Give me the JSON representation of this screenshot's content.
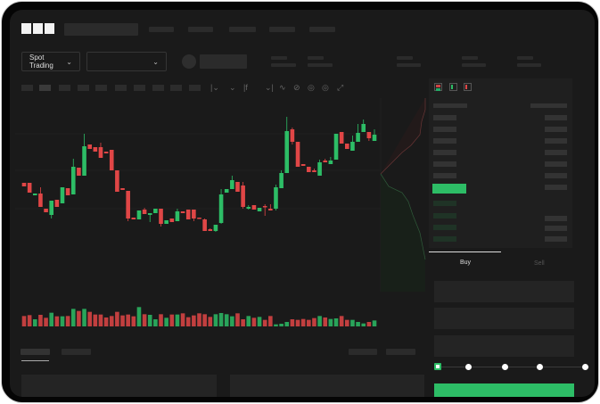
{
  "header": {
    "logo_text": "OKX",
    "nav_items": [
      "",
      "",
      "",
      "",
      ""
    ]
  },
  "market_bar": {
    "mode_select": "Spot Trading",
    "pair_select": ""
  },
  "toolbar": {
    "icons": [
      "candle-type-icon",
      "indicator-icon",
      "formula-icon",
      "line-tool-icon",
      "pencil-icon",
      "camera-icon",
      "settings-icon",
      "fullscreen-icon"
    ]
  },
  "orderbook": {
    "view_icons": [
      "both-sides-icon",
      "bids-only-icon",
      "asks-only-icon"
    ]
  },
  "trade_panel": {
    "tabs": [
      "Buy",
      "Sell"
    ],
    "active_tab": "Buy",
    "leverage_steps": 5,
    "selected_step": 0
  },
  "colors": {
    "up": "#2dbd66",
    "down": "#e04646",
    "background": "#1a1a1a",
    "panel": "#1f1f1f"
  },
  "chart_data": {
    "type": "candlestick",
    "grid": true,
    "candles": [
      [
        67,
        67,
        63,
        63
      ],
      [
        67,
        67,
        56,
        56
      ],
      [
        53,
        55,
        53,
        55
      ],
      [
        55,
        62,
        40,
        40
      ],
      [
        38,
        38,
        34,
        34
      ],
      [
        31,
        47,
        27,
        47
      ],
      [
        48,
        48,
        40,
        40
      ],
      [
        44,
        62,
        44,
        62
      ],
      [
        61,
        61,
        53,
        53
      ],
      [
        54,
        94,
        54,
        85
      ],
      [
        84,
        84,
        75,
        75
      ],
      [
        75,
        122,
        75,
        108
      ],
      [
        110,
        110,
        105,
        105
      ],
      [
        107,
        107,
        102,
        102
      ],
      [
        107,
        112,
        95,
        95
      ],
      [
        102,
        102,
        100,
        100
      ],
      [
        104,
        104,
        81,
        81
      ],
      [
        81,
        81,
        57,
        57
      ],
      [
        61,
        61,
        59,
        59
      ],
      [
        58,
        58,
        24,
        27
      ],
      [
        28,
        28,
        26,
        26
      ],
      [
        26,
        36,
        26,
        36
      ],
      [
        37,
        39,
        32,
        32
      ],
      [
        31,
        33,
        23,
        33
      ],
      [
        33,
        38,
        33,
        38
      ],
      [
        38,
        38,
        18,
        21
      ],
      [
        21,
        25,
        21,
        25
      ],
      [
        27,
        27,
        23,
        23
      ],
      [
        24,
        38,
        24,
        35
      ],
      [
        35,
        35,
        33,
        33
      ],
      [
        37,
        37,
        26,
        26
      ],
      [
        37,
        37,
        24,
        27
      ],
      [
        28,
        28,
        27,
        27
      ],
      [
        26,
        27,
        13,
        13
      ],
      [
        15,
        16,
        13,
        13
      ],
      [
        13,
        20,
        12,
        20
      ],
      [
        22,
        60,
        21,
        54
      ],
      [
        56,
        60,
        56,
        60
      ],
      [
        60,
        75,
        60,
        70
      ],
      [
        68,
        68,
        57,
        57
      ],
      [
        64,
        68,
        38,
        40
      ],
      [
        38,
        42,
        37,
        40
      ],
      [
        42,
        42,
        37,
        37
      ],
      [
        35,
        39,
        35,
        39
      ],
      [
        41,
        43,
        30,
        40
      ],
      [
        38,
        43,
        36,
        36
      ],
      [
        38,
        65,
        36,
        62
      ],
      [
        61,
        81,
        61,
        78
      ],
      [
        78,
        141,
        78,
        125
      ],
      [
        127,
        129,
        110,
        113
      ],
      [
        113,
        113,
        85,
        85
      ],
      [
        88,
        88,
        86,
        86
      ],
      [
        85,
        85,
        79,
        79
      ],
      [
        81,
        83,
        79,
        79
      ],
      [
        75,
        93,
        75,
        90
      ],
      [
        92,
        94,
        90,
        90
      ],
      [
        88,
        96,
        88,
        92
      ],
      [
        93,
        122,
        93,
        122
      ],
      [
        124,
        124,
        111,
        111
      ],
      [
        111,
        111,
        105,
        105
      ],
      [
        103,
        120,
        103,
        113
      ],
      [
        113,
        133,
        113,
        123
      ],
      [
        124,
        138,
        124,
        133
      ],
      [
        124,
        124,
        114,
        117
      ],
      [
        114,
        127,
        114,
        121
      ]
    ],
    "candle_format": [
      "open",
      "high",
      "low",
      "close"
    ],
    "volume": [
      35,
      38,
      24,
      39,
      29,
      46,
      34,
      34,
      35,
      59,
      52,
      59,
      49,
      40,
      40,
      30,
      35,
      49,
      37,
      40,
      34,
      65,
      41,
      39,
      24,
      41,
      29,
      40,
      40,
      44,
      31,
      37,
      44,
      41,
      32,
      41,
      45,
      41,
      34,
      44,
      24,
      35,
      29,
      32,
      22,
      35,
      7,
      9,
      15,
      24,
      22,
      25,
      22,
      28,
      35,
      30,
      25,
      27,
      35,
      22,
      22,
      15,
      10,
      15,
      20
    ],
    "ylim": [
      0,
      150
    ]
  }
}
